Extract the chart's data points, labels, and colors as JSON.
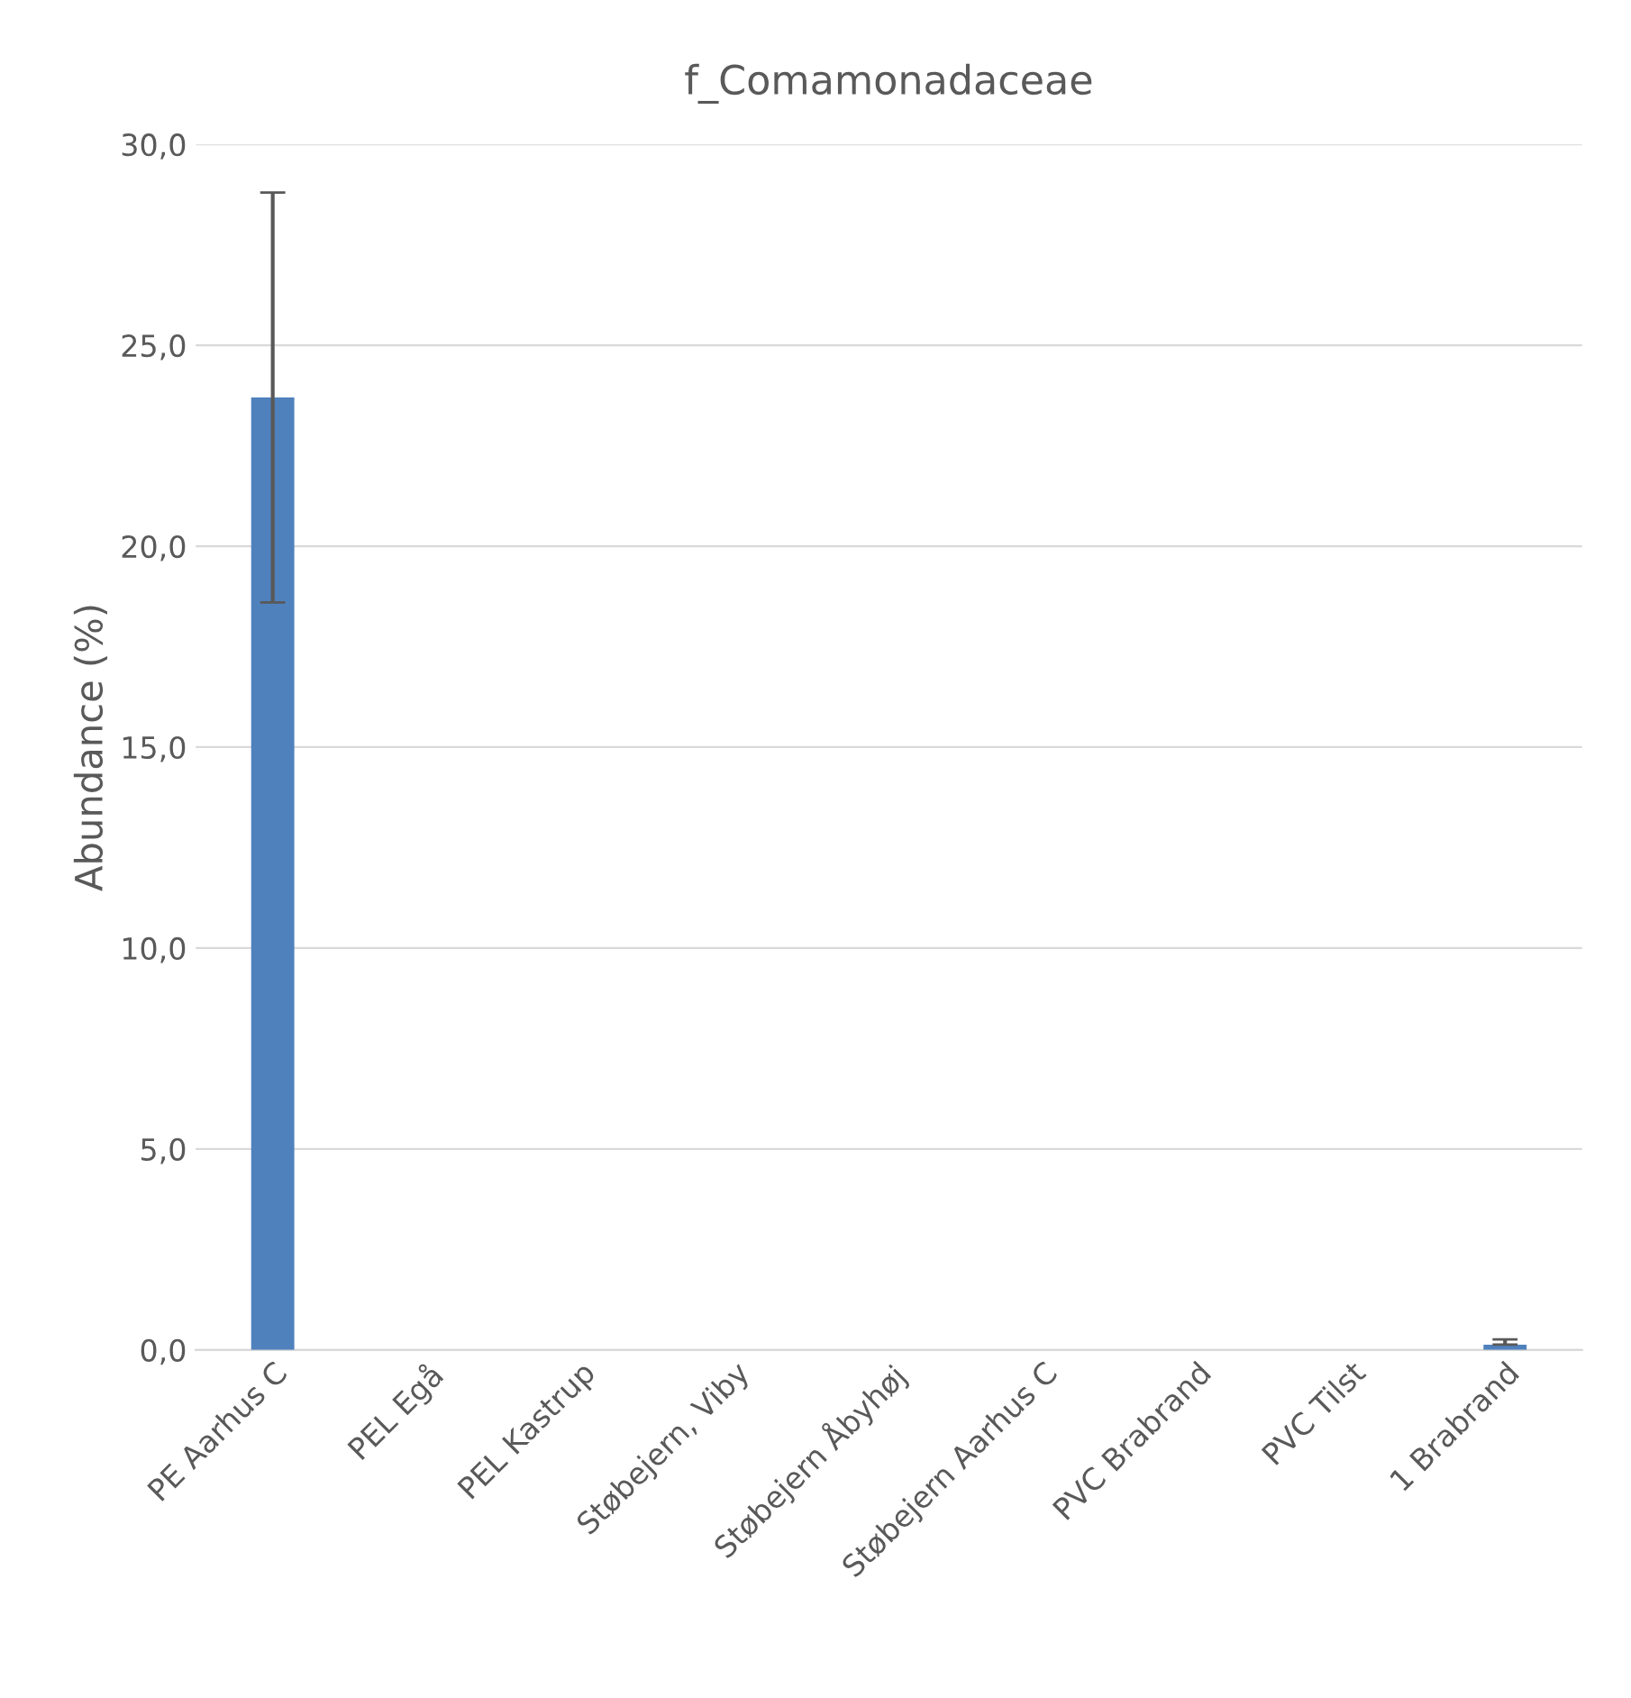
{
  "chart_data": {
    "type": "bar",
    "title": "f_Comamonadaceae",
    "ylabel": "Abundance (%)",
    "categories": [
      "PE Aarhus C",
      "PEL Egå",
      "PEL Kastrup",
      "Støbejern, Viby",
      "Støbejern Åbyhøj",
      "Støbejern Aarhus C",
      "PVC Brabrand",
      "PVC Tilst",
      "1 Brabrand"
    ],
    "values": [
      23.7,
      0,
      0,
      0,
      0,
      0,
      0,
      0,
      0.13
    ],
    "errors": [
      5.1,
      null,
      null,
      null,
      null,
      null,
      null,
      null,
      [
        0.13,
        0.26
      ]
    ],
    "color": "#4f81bd",
    "ylim": [
      0,
      30
    ],
    "yticks": [
      {
        "value": 0,
        "label": "0,0"
      },
      {
        "value": 5,
        "label": "5,0"
      },
      {
        "value": 10,
        "label": "10,0"
      },
      {
        "value": 15,
        "label": "15,0"
      },
      {
        "value": 20,
        "label": "20,0"
      },
      {
        "value": 25,
        "label": "25,0"
      },
      {
        "value": 30,
        "label": "30,0"
      }
    ],
    "grid": "y"
  }
}
